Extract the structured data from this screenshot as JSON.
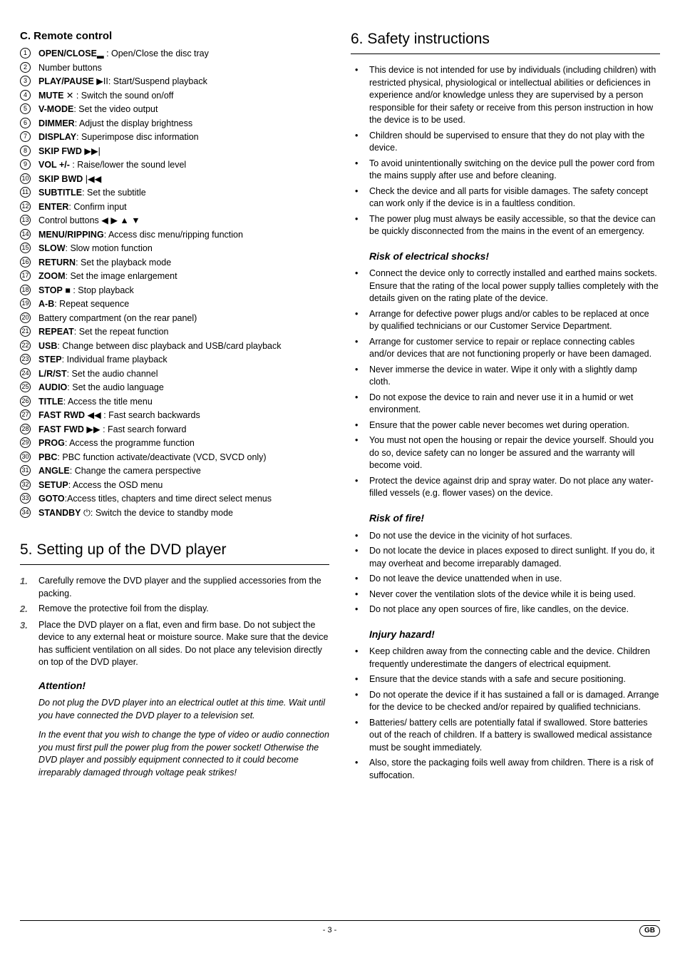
{
  "left": {
    "sectionTitle": "C. Remote control",
    "items": [
      {
        "n": "1",
        "bold": "OPEN/CLOSE",
        "icon": "▂",
        "rest": " : Open/Close the disc tray"
      },
      {
        "n": "2",
        "bold": "",
        "icon": "",
        "rest": "Number buttons"
      },
      {
        "n": "3",
        "bold": "PLAY/PAUSE",
        "icon": " ▶II",
        "rest": ": Start/Suspend playback"
      },
      {
        "n": "4",
        "bold": "MUTE",
        "icon": " ✕",
        "rest": " : Switch the sound on/off"
      },
      {
        "n": "5",
        "bold": "V-MODE",
        "icon": "",
        "rest": ": Set the video output"
      },
      {
        "n": "6",
        "bold": "DIMMER",
        "icon": "",
        "rest": ": Adjust the display brightness"
      },
      {
        "n": "7",
        "bold": "DISPLAY",
        "icon": "",
        "rest": ": Superimpose disc information"
      },
      {
        "n": "8",
        "bold": "SKIP FWD",
        "icon": " ▶▶|",
        "rest": ""
      },
      {
        "n": "9",
        "bold": "VOL +/-",
        "icon": "",
        "rest": " : Raise/lower the sound level"
      },
      {
        "n": "10",
        "bold": "SKIP BWD",
        "icon": " |◀◀",
        "rest": ""
      },
      {
        "n": "11",
        "bold": "SUBTITLE",
        "icon": "",
        "rest": ": Set the subtitle"
      },
      {
        "n": "12",
        "bold": "ENTER",
        "icon": "",
        "rest": ": Confirm input"
      },
      {
        "n": "13",
        "bold": "",
        "icon": "",
        "rest": "Control buttons  ◀  ▶  ▲  ▼"
      },
      {
        "n": "14",
        "bold": "MENU/RIPPING",
        "icon": "",
        "rest": ": Access disc menu/ripping function"
      },
      {
        "n": "15",
        "bold": "SLOW",
        "icon": "",
        "rest": ": Slow motion function"
      },
      {
        "n": "16",
        "bold": "RETURN",
        "icon": "",
        "rest": ": Set the playback mode"
      },
      {
        "n": "17",
        "bold": "ZOOM",
        "icon": "",
        "rest": ": Set the image enlargement"
      },
      {
        "n": "18",
        "bold": "STOP",
        "icon": " ■",
        "rest": " : Stop playback"
      },
      {
        "n": "19",
        "bold": "A-B",
        "icon": "",
        "rest": ": Repeat sequence"
      },
      {
        "n": "20",
        "bold": "",
        "icon": "",
        "rest": "Battery compartment (on the rear panel)"
      },
      {
        "n": "21",
        "bold": "REPEAT",
        "icon": "",
        "rest": ": Set the repeat function"
      },
      {
        "n": "22",
        "bold": "USB",
        "icon": "",
        "rest": ": Change between disc playback and USB/card playback"
      },
      {
        "n": "23",
        "bold": "STEP",
        "icon": "",
        "rest": ": Individual frame playback"
      },
      {
        "n": "24",
        "bold": "L/R/ST",
        "icon": "",
        "rest": ": Set the audio channel"
      },
      {
        "n": "25",
        "bold": "AUDIO",
        "icon": "",
        "rest": ": Set the audio language"
      },
      {
        "n": "26",
        "bold": "TITLE",
        "icon": "",
        "rest": ": Access the title menu"
      },
      {
        "n": "27",
        "bold": "FAST RWD",
        "icon": " ◀◀",
        "rest": " : Fast search backwards"
      },
      {
        "n": "28",
        "bold": "FAST FWD",
        "icon": " ▶▶",
        "rest": " : Fast search forward"
      },
      {
        "n": "29",
        "bold": "PROG",
        "icon": "",
        "rest": ": Access the programme function"
      },
      {
        "n": "30",
        "bold": "PBC",
        "icon": "",
        "rest": ": PBC function activate/deactivate (VCD, SVCD only)"
      },
      {
        "n": "31",
        "bold": "ANGLE",
        "icon": "",
        "rest": ": Change the camera perspective"
      },
      {
        "n": "32",
        "bold": "SETUP",
        "icon": "",
        "rest": ": Access the OSD menu"
      },
      {
        "n": "33",
        "bold": "GOTO",
        "icon": "",
        "rest": ":Access titles, chapters and time direct select menus"
      },
      {
        "n": "34",
        "bold": "STANDBY",
        "icon": " ⏻",
        "rest": ": Switch the device to standby mode"
      }
    ],
    "setupHeading": "5. Setting up of the DVD player",
    "steps": [
      {
        "n": "1.",
        "t": "Carefully remove the DVD player and the supplied accessories from the packing."
      },
      {
        "n": "2.",
        "t": "Remove the protective foil from the display."
      },
      {
        "n": "3.",
        "t": "Place the DVD player on a flat, even and firm base. Do not subject the device to any external heat or moisture source. Make sure that the device has sufficient ventilation on all sides. Do not place any television directly on top of the DVD player."
      }
    ],
    "attentionHead": "Attention!",
    "attentionP1": "Do not plug the DVD player into an electrical outlet at this time. Wait until you have connected the DVD player to a television set.",
    "attentionP2": "In the event that you wish to change the type of video or audio connection you must first pull the power plug from the power socket! Otherwise the DVD player and possibly equipment connected to it could become irreparably damaged through voltage peak strikes!"
  },
  "right": {
    "heading": "6. Safety instructions",
    "intro": [
      "This device is not intended for use by individuals (including children) with restricted physical, physiological or intellectual abilities or deficiences in experience and/or knowledge unless they are supervised by a person responsible for their safety or receive from this person instruction in how the device is to be used.",
      "Children should be supervised to ensure that they do not play with the device.",
      "To avoid unintentionally switching on the device pull the power cord from the mains supply after use and before cleaning.",
      "Check the device and all parts for visible damages. The safety concept can work only if the device is in a faultless condition.",
      "The power plug must always be easily accessible, so that the device can be quickly disconnected from the mains in the event of an emergency."
    ],
    "shockHead": "Risk of electrical shocks!",
    "shock": [
      "Connect the device only to correctly installed and earthed mains sockets. Ensure that the rating of the local power supply tallies completely with the details given on the rating plate of the device.",
      " Arrange for defective power plugs and/or cables to be replaced at once by qualified technicians or our Customer Service Department.",
      "Arrange for customer service to repair or replace connecting cables and/or devices that are not functioning properly or have been damaged.",
      "Never immerse the device in water. Wipe it only with a slightly damp cloth.",
      "Do not expose the device to rain and never use it in a humid or wet environment.",
      "Ensure that the power cable never becomes wet during operation.",
      "You must not open the housing or repair the device yourself. Should you do so, device safety can no longer be assured and the warranty will become void.",
      "Protect the device against drip and spray water. Do not place any water-filled vessels (e.g. flower vases) on the device."
    ],
    "fireHead": "Risk of fire!",
    "fire": [
      "Do not use the device in the vicinity of hot surfaces.",
      "Do not locate the device in places exposed to direct sunlight. If you do, it may overheat and become irreparably damaged.",
      "Do not leave the device unattended when in use.",
      "Never cover the ventilation slots of the device while it is being used.",
      "Do not place any open sources of fire, like candles, on the device."
    ],
    "injuryHead": "Injury hazard!",
    "injury": [
      "Keep children away from the connecting cable and the device. Children frequently underestimate the dangers of electrical equipment.",
      "Ensure that the device stands with a safe and secure positioning.",
      "Do not operate the device if it has sustained a fall or is damaged. Arrange for the device to be checked and/or repaired by qualified technicians.",
      "Batteries/ battery cells are potentially fatal if swallowed. Store batteries out of the reach of children. If a battery is swallowed medical assistance must be sought immediately.",
      "Also, store the packaging foils well away from children. There is a risk of suffocation."
    ]
  },
  "footer": {
    "page": "- 3 -",
    "region": "GB"
  }
}
